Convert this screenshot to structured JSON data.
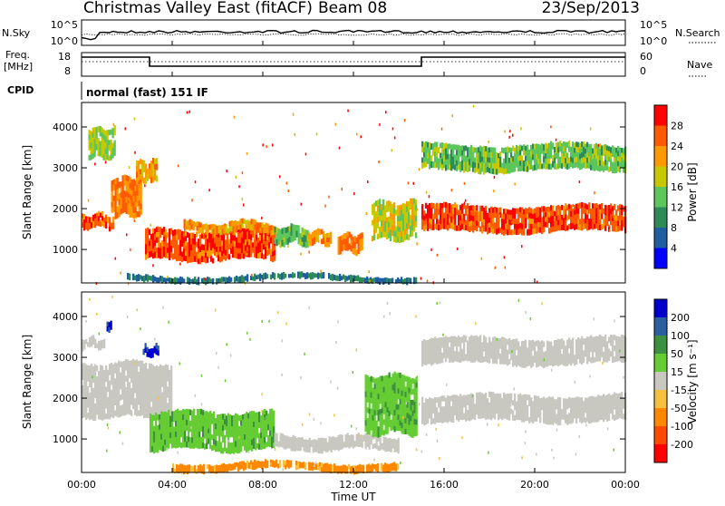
{
  "header": {
    "title": "Christmas Valley East (fitACF)",
    "beam": "Beam 08",
    "date": "23/Sep/2013"
  },
  "nsky_panel": {
    "left_label": "N.Sky",
    "right_label": "N.Search",
    "left_ticks": [
      "10^5",
      "10^0"
    ],
    "right_ticks": [
      "10^5",
      "10^0"
    ]
  },
  "freq_panel": {
    "left_label_1": "Freq.",
    "left_label_2": "[MHz]",
    "right_label": "Nave",
    "left_ticks": [
      "18",
      "8"
    ],
    "right_ticks": [
      "60",
      "0"
    ]
  },
  "cpid": {
    "label": "CPID",
    "value": "normal (fast) 151 IF"
  },
  "x_axis": {
    "ticks": [
      "00:00",
      "04:00",
      "08:00",
      "12:00",
      "16:00",
      "20:00",
      "00:00"
    ],
    "label": "Time UT"
  },
  "power_panel": {
    "ylabel": "Slant Range [km]",
    "yticks": [
      "1000",
      "2000",
      "3000",
      "4000"
    ],
    "colorbar_label": "Power [dB]",
    "colorbar_ticks": [
      "4",
      "8",
      "12",
      "16",
      "20",
      "24",
      "28"
    ],
    "colors": [
      "#0000ff",
      "#1f5fa0",
      "#2e8b57",
      "#5cc65c",
      "#c8c800",
      "#ff9900",
      "#ff5a00",
      "#ff0000"
    ]
  },
  "velocity_panel": {
    "ylabel": "Slant Range [km]",
    "yticks": [
      "1000",
      "2000",
      "3000",
      "4000"
    ],
    "colorbar_label": "Velocity [m s⁻¹]",
    "colorbar_ticks": [
      "200",
      "100",
      "50",
      "15",
      "-15",
      "-50",
      "-100",
      "-200"
    ],
    "colors": [
      "#0000cc",
      "#2a5fa0",
      "#3c9040",
      "#66cc33",
      "#c8c8c0",
      "#f5c040",
      "#ff8800",
      "#ff4a00",
      "#ff0000"
    ]
  },
  "chart_data": {
    "type": "heatmap",
    "x_range_hours": [
      0,
      24
    ],
    "y_range_km": [
      180,
      4600
    ],
    "panels": [
      {
        "name": "Power",
        "regions": [
          {
            "t0": 0.0,
            "t1": 1.4,
            "r0": 1500,
            "r1": 1900,
            "level": 26
          },
          {
            "t0": 1.3,
            "t1": 2.6,
            "r0": 1800,
            "r1": 2800,
            "level": 24
          },
          {
            "t0": 0.3,
            "t1": 1.5,
            "r0": 3200,
            "r1": 4000,
            "level": 16
          },
          {
            "t0": 2.4,
            "t1": 3.3,
            "r0": 2600,
            "r1": 3200,
            "level": 22
          },
          {
            "t0": 2.8,
            "t1": 8.5,
            "r0": 700,
            "r1": 1500,
            "level": 27
          },
          {
            "t0": 4.5,
            "t1": 8.5,
            "r0": 1400,
            "r1": 1700,
            "level": 22
          },
          {
            "t0": 8.5,
            "t1": 10.0,
            "r0": 1100,
            "r1": 1600,
            "level": 14
          },
          {
            "t0": 10.0,
            "t1": 11.0,
            "r0": 1100,
            "r1": 1500,
            "level": 22
          },
          {
            "t0": 11.3,
            "t1": 12.4,
            "r0": 900,
            "r1": 1400,
            "level": 24
          },
          {
            "t0": 12.8,
            "t1": 14.8,
            "r0": 1200,
            "r1": 2200,
            "level": 18
          },
          {
            "t0": 15.0,
            "t1": 24.0,
            "r0": 1400,
            "r1": 2100,
            "level": 27
          },
          {
            "t0": 15.0,
            "t1": 24.0,
            "r0": 2900,
            "r1": 3600,
            "level": 14
          },
          {
            "t0": 2.0,
            "t1": 14.8,
            "r0": 200,
            "r1": 400,
            "level": 8
          }
        ]
      },
      {
        "name": "Velocity",
        "regions": [
          {
            "t0": 0.0,
            "t1": 4.0,
            "r0": 1500,
            "r1": 2900,
            "level": 0
          },
          {
            "t0": 0.0,
            "t1": 1.0,
            "r0": 3200,
            "r1": 3500,
            "level": 0
          },
          {
            "t0": 3.0,
            "t1": 8.5,
            "r0": 700,
            "r1": 1700,
            "level": 40
          },
          {
            "t0": 1.1,
            "t1": 1.3,
            "r0": 3600,
            "r1": 3900,
            "level": 200
          },
          {
            "t0": 2.7,
            "t1": 3.4,
            "r0": 3000,
            "r1": 3300,
            "level": 200
          },
          {
            "t0": 8.5,
            "t1": 14.0,
            "r0": 700,
            "r1": 1100,
            "level": 0
          },
          {
            "t0": 12.5,
            "t1": 14.8,
            "r0": 1100,
            "r1": 2600,
            "level": 40
          },
          {
            "t0": 4.0,
            "t1": 14.0,
            "r0": 200,
            "r1": 450,
            "level": -60
          },
          {
            "t0": 15.0,
            "t1": 24.0,
            "r0": 1400,
            "r1": 2100,
            "level": 0
          },
          {
            "t0": 15.0,
            "t1": 24.0,
            "r0": 2800,
            "r1": 3500,
            "level": 0
          }
        ]
      }
    ]
  }
}
